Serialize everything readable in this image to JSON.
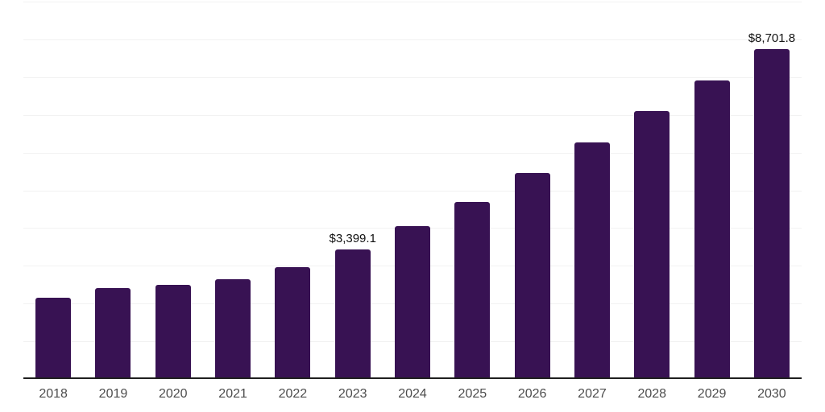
{
  "chart_data": {
    "type": "bar",
    "title": "",
    "xlabel": "",
    "ylabel": "",
    "categories": [
      "2018",
      "2019",
      "2020",
      "2021",
      "2022",
      "2023",
      "2024",
      "2025",
      "2026",
      "2027",
      "2028",
      "2029",
      "2030"
    ],
    "values": [
      2120,
      2360,
      2460,
      2610,
      2930,
      3399.1,
      4010,
      4650,
      5420,
      6220,
      7050,
      7870,
      8701.8
    ],
    "annotations": [
      {
        "category": "2023",
        "text": "$3,399.1",
        "value": 3399.1
      },
      {
        "category": "2030",
        "text": "$8,701.8",
        "value": 8701.8
      }
    ],
    "ylim": [
      0,
      10000
    ],
    "gridline_step": 1000,
    "grid": "horizontal",
    "y_tick_labels_visible": false,
    "legend": "none"
  },
  "style": {
    "bar_color": "#381253",
    "gridline_color": "#f2f2f2",
    "axis_line_color": "#1f1f1f",
    "tick_label_color": "#4d4d4d",
    "data_label_color": "#111111",
    "background": "#ffffff"
  }
}
